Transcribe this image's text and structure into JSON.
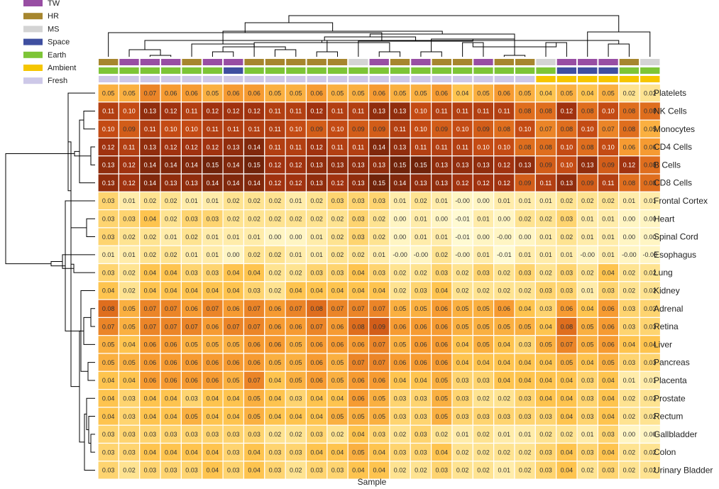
{
  "chart_data": {
    "type": "heatmap",
    "title": "",
    "xlabel": "Sample",
    "ylabel": "",
    "grid": false,
    "legend_placement": "top-left",
    "legend": [
      {
        "label": "TW",
        "color": "#984ea3"
      },
      {
        "label": "HR",
        "color": "#a6862e"
      },
      {
        "label": "MS",
        "color": "#d4d4d4"
      },
      {
        "label": "Space",
        "color": "#3f4fa0"
      },
      {
        "label": "Earth",
        "color": "#7dc536"
      },
      {
        "label": "Ambient",
        "color": "#f5c600"
      },
      {
        "label": "Fresh",
        "color": "#cdc8e8"
      }
    ],
    "annotation_tracks": {
      "group": [
        "HR",
        "TW",
        "TW",
        "TW",
        "HR",
        "TW",
        "TW",
        "HR",
        "HR",
        "HR",
        "HR",
        "HR",
        "MS",
        "TW",
        "HR",
        "TW",
        "HR",
        "HR",
        "TW",
        "HR",
        "HR",
        "MS",
        "TW",
        "TW",
        "TW",
        "HR",
        "MS"
      ],
      "condition": [
        "Earth",
        "Earth",
        "Earth",
        "Earth",
        "Earth",
        "Earth",
        "Space",
        "Earth",
        "Earth",
        "Earth",
        "Earth",
        "Earth",
        "Earth",
        "Earth",
        "Earth",
        "Earth",
        "Earth",
        "Earth",
        "Earth",
        "Earth",
        "Earth",
        "Earth",
        "Space",
        "Space",
        "Space",
        "Earth",
        "Earth"
      ],
      "storage": [
        "Fresh",
        "Fresh",
        "Fresh",
        "Fresh",
        "Fresh",
        "Fresh",
        "Fresh",
        "Fresh",
        "Fresh",
        "Fresh",
        "Fresh",
        "Fresh",
        "Fresh",
        "Fresh",
        "Fresh",
        "Fresh",
        "Fresh",
        "Fresh",
        "Fresh",
        "Fresh",
        "Fresh",
        "Ambient",
        "Ambient",
        "Ambient",
        "Ambient",
        "Ambient",
        "Ambient"
      ]
    },
    "rows": [
      "Platelets",
      "NK Cells",
      "Monocytes",
      "CD4 Cells",
      "B Cells",
      "CD8 Cells",
      "Frontal Cortex",
      "Heart",
      "Spinal Cord",
      "Esophagus",
      "Lung",
      "Kidney",
      "Adrenal",
      "Retina",
      "Liver",
      "Pancreas",
      "Placenta",
      "Prostate",
      "Rectum",
      "Gallbladder",
      "Colon",
      "Urinary Bladder"
    ],
    "values": [
      [
        "0.05",
        "0.05",
        "0.07",
        "0.06",
        "0.06",
        "0.05",
        "0.06",
        "0.06",
        "0.05",
        "0.05",
        "0.06",
        "0.05",
        "0.05",
        "0.06",
        "0.05",
        "0.05",
        "0.06",
        "0.04",
        "0.05",
        "0.06",
        "0.05",
        "0.04",
        "0.05",
        "0.04",
        "0.05",
        "0.02",
        "0.02"
      ],
      [
        "0.11",
        "0.10",
        "0.13",
        "0.12",
        "0.11",
        "0.12",
        "0.12",
        "0.12",
        "0.11",
        "0.11",
        "0.12",
        "0.11",
        "0.11",
        "0.13",
        "0.13",
        "0.10",
        "0.11",
        "0.11",
        "0.11",
        "0.11",
        "0.08",
        "0.08",
        "0.12",
        "0.08",
        "0.10",
        "0.08",
        "0.08"
      ],
      [
        "0.10",
        "0.09",
        "0.11",
        "0.10",
        "0.10",
        "0.11",
        "0.11",
        "0.11",
        "0.11",
        "0.10",
        "0.09",
        "0.10",
        "0.09",
        "0.09",
        "0.11",
        "0.10",
        "0.09",
        "0.10",
        "0.09",
        "0.08",
        "0.10",
        "0.07",
        "0.08",
        "0.10",
        "0.07",
        "0.08",
        "0.05"
      ],
      [
        "0.12",
        "0.11",
        "0.13",
        "0.12",
        "0.12",
        "0.12",
        "0.13",
        "0.14",
        "0.11",
        "0.11",
        "0.12",
        "0.11",
        "0.11",
        "0.14",
        "0.13",
        "0.11",
        "0.11",
        "0.11",
        "0.10",
        "0.10",
        "0.08",
        "0.08",
        "0.10",
        "0.08",
        "0.10",
        "0.06",
        "0.06"
      ],
      [
        "0.13",
        "0.12",
        "0.14",
        "0.14",
        "0.14",
        "0.15",
        "0.14",
        "0.15",
        "0.12",
        "0.12",
        "0.13",
        "0.13",
        "0.13",
        "0.13",
        "0.15",
        "0.15",
        "0.13",
        "0.13",
        "0.13",
        "0.12",
        "0.13",
        "0.09",
        "0.10",
        "0.13",
        "0.09",
        "0.12",
        "0.08"
      ],
      [
        "0.13",
        "0.12",
        "0.14",
        "0.13",
        "0.13",
        "0.14",
        "0.14",
        "0.14",
        "0.12",
        "0.12",
        "0.13",
        "0.12",
        "0.13",
        "0.15",
        "0.14",
        "0.13",
        "0.13",
        "0.12",
        "0.12",
        "0.12",
        "0.09",
        "0.11",
        "0.13",
        "0.09",
        "0.11",
        "0.08",
        "0.08"
      ],
      [
        "0.03",
        "0.01",
        "0.02",
        "0.02",
        "0.01",
        "0.01",
        "0.02",
        "0.02",
        "0.02",
        "0.01",
        "0.02",
        "0.03",
        "0.03",
        "0.03",
        "0.01",
        "0.02",
        "0.01",
        "-0.00",
        "0.00",
        "0.01",
        "0.01",
        "0.01",
        "0.02",
        "0.02",
        "0.02",
        "0.01",
        "0.01"
      ],
      [
        "0.03",
        "0.03",
        "0.04",
        "0.02",
        "0.03",
        "0.03",
        "0.02",
        "0.02",
        "0.02",
        "0.02",
        "0.02",
        "0.02",
        "0.03",
        "0.02",
        "0.00",
        "0.01",
        "0.00",
        "-0.01",
        "0.01",
        "0.00",
        "0.02",
        "0.02",
        "0.03",
        "0.01",
        "0.01",
        "0.00",
        "0.00"
      ],
      [
        "0.03",
        "0.02",
        "0.02",
        "0.01",
        "0.02",
        "0.01",
        "0.01",
        "0.01",
        "0.00",
        "0.00",
        "0.01",
        "0.02",
        "0.03",
        "0.02",
        "0.00",
        "0.01",
        "0.01",
        "-0.01",
        "0.00",
        "-0.00",
        "0.00",
        "0.01",
        "0.02",
        "0.01",
        "0.01",
        "0.00",
        "0.00"
      ],
      [
        "0.01",
        "0.01",
        "0.02",
        "0.02",
        "0.01",
        "0.01",
        "0.00",
        "0.02",
        "0.02",
        "0.01",
        "0.01",
        "0.02",
        "0.02",
        "0.01",
        "-0.00",
        "-0.00",
        "0.02",
        "-0.00",
        "0.01",
        "-0.01",
        "0.01",
        "0.01",
        "0.01",
        "-0.00",
        "0.01",
        "-0.00",
        "-0.00"
      ],
      [
        "0.03",
        "0.02",
        "0.04",
        "0.04",
        "0.03",
        "0.03",
        "0.04",
        "0.04",
        "0.02",
        "0.02",
        "0.03",
        "0.03",
        "0.04",
        "0.03",
        "0.02",
        "0.02",
        "0.03",
        "0.02",
        "0.03",
        "0.02",
        "0.03",
        "0.02",
        "0.03",
        "0.02",
        "0.04",
        "0.02",
        "0.02"
      ],
      [
        "0.04",
        "0.02",
        "0.04",
        "0.04",
        "0.04",
        "0.04",
        "0.04",
        "0.03",
        "0.02",
        "0.04",
        "0.04",
        "0.04",
        "0.04",
        "0.04",
        "0.02",
        "0.03",
        "0.04",
        "0.02",
        "0.02",
        "0.02",
        "0.02",
        "0.03",
        "0.03",
        "0.01",
        "0.03",
        "0.02",
        "0.02"
      ],
      [
        "0.08",
        "0.05",
        "0.07",
        "0.07",
        "0.06",
        "0.07",
        "0.06",
        "0.07",
        "0.06",
        "0.07",
        "0.08",
        "0.07",
        "0.07",
        "0.07",
        "0.05",
        "0.05",
        "0.06",
        "0.05",
        "0.05",
        "0.06",
        "0.04",
        "0.03",
        "0.06",
        "0.04",
        "0.06",
        "0.03",
        "0.03"
      ],
      [
        "0.07",
        "0.05",
        "0.07",
        "0.07",
        "0.07",
        "0.06",
        "0.07",
        "0.07",
        "0.06",
        "0.06",
        "0.07",
        "0.06",
        "0.08",
        "0.09",
        "0.06",
        "0.06",
        "0.06",
        "0.05",
        "0.05",
        "0.05",
        "0.05",
        "0.04",
        "0.08",
        "0.05",
        "0.06",
        "0.03",
        "0.03"
      ],
      [
        "0.05",
        "0.04",
        "0.06",
        "0.06",
        "0.05",
        "0.05",
        "0.05",
        "0.06",
        "0.06",
        "0.05",
        "0.06",
        "0.06",
        "0.06",
        "0.07",
        "0.05",
        "0.06",
        "0.06",
        "0.04",
        "0.05",
        "0.04",
        "0.03",
        "0.05",
        "0.07",
        "0.05",
        "0.06",
        "0.04",
        "0.04"
      ],
      [
        "0.05",
        "0.05",
        "0.06",
        "0.06",
        "0.06",
        "0.06",
        "0.06",
        "0.06",
        "0.05",
        "0.05",
        "0.06",
        "0.05",
        "0.07",
        "0.07",
        "0.06",
        "0.06",
        "0.06",
        "0.04",
        "0.04",
        "0.04",
        "0.04",
        "0.04",
        "0.05",
        "0.04",
        "0.05",
        "0.03",
        "0.03"
      ],
      [
        "0.04",
        "0.04",
        "0.06",
        "0.06",
        "0.06",
        "0.06",
        "0.05",
        "0.07",
        "0.04",
        "0.05",
        "0.06",
        "0.05",
        "0.06",
        "0.06",
        "0.04",
        "0.04",
        "0.05",
        "0.03",
        "0.03",
        "0.04",
        "0.04",
        "0.04",
        "0.04",
        "0.03",
        "0.04",
        "0.01",
        "0.01"
      ],
      [
        "0.04",
        "0.03",
        "0.04",
        "0.04",
        "0.03",
        "0.04",
        "0.04",
        "0.05",
        "0.04",
        "0.03",
        "0.04",
        "0.04",
        "0.06",
        "0.05",
        "0.03",
        "0.03",
        "0.05",
        "0.03",
        "0.02",
        "0.02",
        "0.03",
        "0.04",
        "0.04",
        "0.03",
        "0.04",
        "0.02",
        "0.02"
      ],
      [
        "0.04",
        "0.03",
        "0.04",
        "0.04",
        "0.05",
        "0.04",
        "0.04",
        "0.05",
        "0.04",
        "0.04",
        "0.04",
        "0.05",
        "0.05",
        "0.05",
        "0.03",
        "0.03",
        "0.05",
        "0.03",
        "0.03",
        "0.03",
        "0.03",
        "0.03",
        "0.04",
        "0.03",
        "0.04",
        "0.02",
        "0.02"
      ],
      [
        "0.03",
        "0.03",
        "0.03",
        "0.03",
        "0.03",
        "0.03",
        "0.03",
        "0.03",
        "0.02",
        "0.02",
        "0.03",
        "0.02",
        "0.04",
        "0.03",
        "0.02",
        "0.03",
        "0.02",
        "0.01",
        "0.02",
        "0.01",
        "0.01",
        "0.02",
        "0.02",
        "0.01",
        "0.03",
        "0.00",
        "0.00"
      ],
      [
        "0.03",
        "0.03",
        "0.04",
        "0.04",
        "0.04",
        "0.04",
        "0.03",
        "0.04",
        "0.03",
        "0.03",
        "0.04",
        "0.04",
        "0.05",
        "0.04",
        "0.03",
        "0.03",
        "0.04",
        "0.02",
        "0.02",
        "0.02",
        "0.02",
        "0.03",
        "0.04",
        "0.03",
        "0.04",
        "0.02",
        "0.02"
      ],
      [
        "0.03",
        "0.02",
        "0.03",
        "0.03",
        "0.03",
        "0.04",
        "0.03",
        "0.04",
        "0.03",
        "0.02",
        "0.03",
        "0.03",
        "0.04",
        "0.04",
        "0.02",
        "0.02",
        "0.03",
        "0.02",
        "0.02",
        "0.01",
        "0.02",
        "0.03",
        "0.04",
        "0.02",
        "0.03",
        "0.02",
        "0.02"
      ]
    ]
  }
}
